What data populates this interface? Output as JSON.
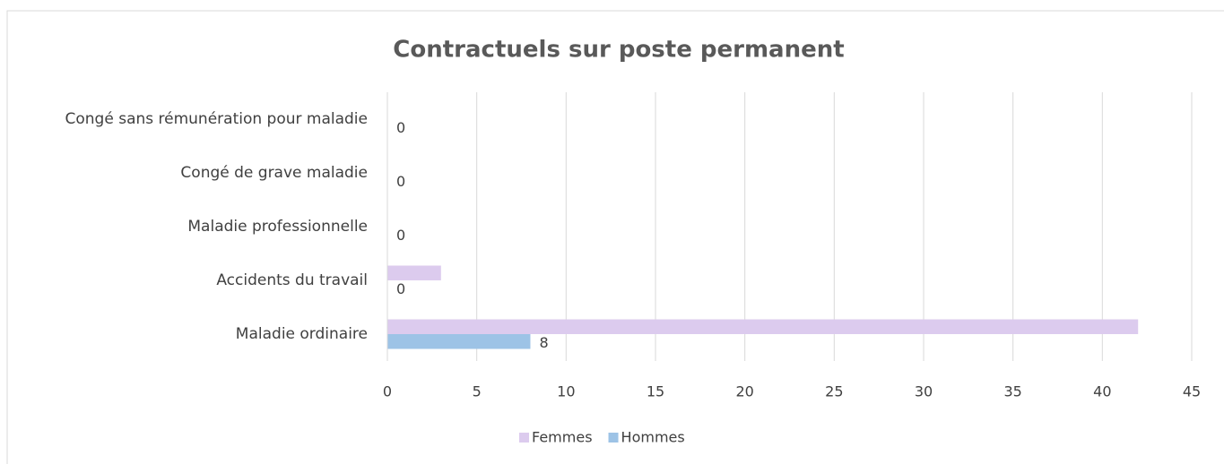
{
  "chart_data": {
    "type": "hbar",
    "title": "Contractuels sur poste permanent",
    "categories": [
      "Maladie ordinaire",
      "Accidents du travail",
      "Maladie professionnelle",
      "Congé de grave maladie",
      "Congé sans rémunération pour maladie"
    ],
    "series": [
      {
        "name": "Femmes",
        "color": "#dccbee",
        "values": [
          42,
          3,
          0,
          0,
          0
        ],
        "data_labels": false
      },
      {
        "name": "Hommes",
        "color": "#9dc3e6",
        "values": [
          8,
          0,
          0,
          0,
          0
        ],
        "data_labels": true
      }
    ],
    "xlim": [
      0,
      45
    ],
    "xticks": [
      0,
      5,
      10,
      15,
      20,
      25,
      30,
      35,
      40,
      45
    ],
    "grid": true,
    "legend": "bottom"
  }
}
